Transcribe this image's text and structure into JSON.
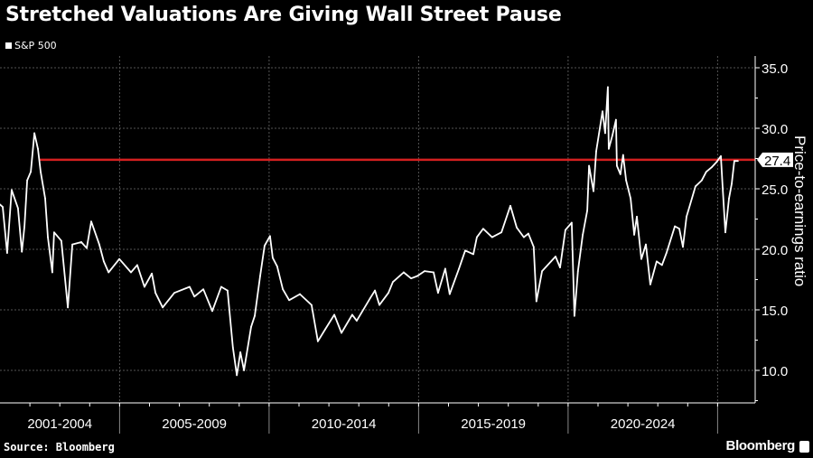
{
  "chart_data": {
    "type": "line",
    "title": "Stretched Valuations Are Giving Wall Street Pause",
    "legend": [
      "S&P 500"
    ],
    "legend_placement": "top-left",
    "xlabel": "",
    "ylabel": "Price-to-earnings ratio",
    "ylim": [
      7.5,
      35.8
    ],
    "xlim": [
      2001,
      2025.9
    ],
    "y_ticks": [
      "35.0",
      "30.0",
      "25.0",
      "20.0",
      "15.0",
      "10.0"
    ],
    "y_tick_values": [
      35,
      30,
      25,
      20,
      15,
      10
    ],
    "x_categories": [
      "2001-2004",
      "2005-2009",
      "2010-2014",
      "2015-2019",
      "2020-2024"
    ],
    "x_category_ranges": [
      [
        2001,
        2005
      ],
      [
        2005,
        2010
      ],
      [
        2010,
        2015
      ],
      [
        2015,
        2020
      ],
      [
        2020,
        2025
      ]
    ],
    "grid": true,
    "reference_line": {
      "value": 27.4,
      "label": "27.4",
      "start": 2002.3,
      "color": "#d42020"
    },
    "line_color": "#ffffff",
    "series": [
      {
        "name": "S&P 500",
        "points": [
          [
            2001.0,
            23.7
          ],
          [
            2001.09,
            23.5
          ],
          [
            2001.24,
            19.7
          ],
          [
            2001.39,
            24.9
          ],
          [
            2001.6,
            23.4
          ],
          [
            2001.73,
            19.8
          ],
          [
            2001.82,
            21.9
          ],
          [
            2001.91,
            25.7
          ],
          [
            2002.03,
            26.4
          ],
          [
            2002.15,
            29.6
          ],
          [
            2002.27,
            28.3
          ],
          [
            2002.36,
            26.4
          ],
          [
            2002.51,
            24.2
          ],
          [
            2002.6,
            21.0
          ],
          [
            2002.75,
            18.1
          ],
          [
            2002.81,
            21.4
          ],
          [
            2003.05,
            20.7
          ],
          [
            2003.27,
            15.2
          ],
          [
            2003.42,
            20.4
          ],
          [
            2003.72,
            20.6
          ],
          [
            2003.9,
            20.1
          ],
          [
            2004.05,
            22.3
          ],
          [
            2004.32,
            20.4
          ],
          [
            2004.47,
            19.0
          ],
          [
            2004.63,
            18.1
          ],
          [
            2004.99,
            19.2
          ],
          [
            2005.38,
            18.1
          ],
          [
            2005.59,
            18.7
          ],
          [
            2005.83,
            16.9
          ],
          [
            2006.08,
            18.0
          ],
          [
            2006.2,
            16.4
          ],
          [
            2006.44,
            15.2
          ],
          [
            2006.83,
            16.4
          ],
          [
            2007.34,
            16.9
          ],
          [
            2007.5,
            16.1
          ],
          [
            2007.8,
            16.7
          ],
          [
            2008.1,
            14.9
          ],
          [
            2008.4,
            16.9
          ],
          [
            2008.61,
            16.6
          ],
          [
            2008.79,
            11.9
          ],
          [
            2008.92,
            9.6
          ],
          [
            2009.04,
            11.5
          ],
          [
            2009.16,
            10.0
          ],
          [
            2009.4,
            13.6
          ],
          [
            2009.52,
            14.5
          ],
          [
            2009.7,
            17.8
          ],
          [
            2009.85,
            20.3
          ],
          [
            2010.03,
            21.1
          ],
          [
            2010.12,
            19.3
          ],
          [
            2010.27,
            18.6
          ],
          [
            2010.46,
            16.7
          ],
          [
            2010.67,
            15.8
          ],
          [
            2011.03,
            16.3
          ],
          [
            2011.42,
            15.4
          ],
          [
            2011.63,
            12.4
          ],
          [
            2011.88,
            13.4
          ],
          [
            2012.18,
            14.6
          ],
          [
            2012.42,
            13.1
          ],
          [
            2012.78,
            14.6
          ],
          [
            2012.93,
            14.1
          ],
          [
            2013.39,
            16.0
          ],
          [
            2013.54,
            16.6
          ],
          [
            2013.69,
            15.4
          ],
          [
            2013.99,
            16.4
          ],
          [
            2014.14,
            17.3
          ],
          [
            2014.5,
            18.1
          ],
          [
            2014.75,
            17.6
          ],
          [
            2014.96,
            17.8
          ],
          [
            2015.2,
            18.2
          ],
          [
            2015.5,
            18.1
          ],
          [
            2015.65,
            16.4
          ],
          [
            2015.89,
            18.4
          ],
          [
            2016.04,
            16.3
          ],
          [
            2016.35,
            18.4
          ],
          [
            2016.56,
            19.9
          ],
          [
            2016.83,
            19.6
          ],
          [
            2016.95,
            21.0
          ],
          [
            2017.16,
            21.7
          ],
          [
            2017.46,
            21.0
          ],
          [
            2017.77,
            21.4
          ],
          [
            2018.07,
            23.6
          ],
          [
            2018.28,
            21.8
          ],
          [
            2018.52,
            21.0
          ],
          [
            2018.67,
            21.3
          ],
          [
            2018.85,
            20.2
          ],
          [
            2018.94,
            15.7
          ],
          [
            2019.13,
            18.2
          ],
          [
            2019.43,
            19.0
          ],
          [
            2019.58,
            19.4
          ],
          [
            2019.73,
            18.5
          ],
          [
            2019.91,
            21.6
          ],
          [
            2020.12,
            22.2
          ],
          [
            2020.21,
            14.5
          ],
          [
            2020.33,
            18.2
          ],
          [
            2020.49,
            21.2
          ],
          [
            2020.64,
            23.2
          ],
          [
            2020.7,
            26.9
          ],
          [
            2020.85,
            24.8
          ],
          [
            2020.94,
            28.1
          ],
          [
            2021.15,
            31.4
          ],
          [
            2021.24,
            29.6
          ],
          [
            2021.33,
            33.4
          ],
          [
            2021.36,
            28.3
          ],
          [
            2021.48,
            29.4
          ],
          [
            2021.6,
            30.7
          ],
          [
            2021.63,
            26.9
          ],
          [
            2021.75,
            26.2
          ],
          [
            2021.84,
            27.8
          ],
          [
            2021.94,
            25.7
          ],
          [
            2022.09,
            24.2
          ],
          [
            2022.21,
            21.2
          ],
          [
            2022.3,
            22.7
          ],
          [
            2022.45,
            19.2
          ],
          [
            2022.6,
            20.4
          ],
          [
            2022.75,
            17.1
          ],
          [
            2022.96,
            19.0
          ],
          [
            2023.14,
            18.7
          ],
          [
            2023.29,
            19.7
          ],
          [
            2023.57,
            21.9
          ],
          [
            2023.72,
            21.7
          ],
          [
            2023.84,
            20.2
          ],
          [
            2023.96,
            22.7
          ],
          [
            2024.26,
            25.2
          ],
          [
            2024.47,
            25.7
          ],
          [
            2024.62,
            26.4
          ],
          [
            2024.81,
            26.8
          ],
          [
            2024.96,
            27.2
          ],
          [
            2025.11,
            27.7
          ],
          [
            2025.17,
            25.1
          ],
          [
            2025.26,
            21.4
          ],
          [
            2025.38,
            24.2
          ],
          [
            2025.47,
            25.4
          ],
          [
            2025.56,
            27.3
          ],
          [
            2025.68,
            27.3
          ]
        ]
      }
    ]
  },
  "footer": {
    "source": "Source: Bloomberg",
    "brand": "Bloomberg"
  },
  "legend_label": "S&P 500"
}
